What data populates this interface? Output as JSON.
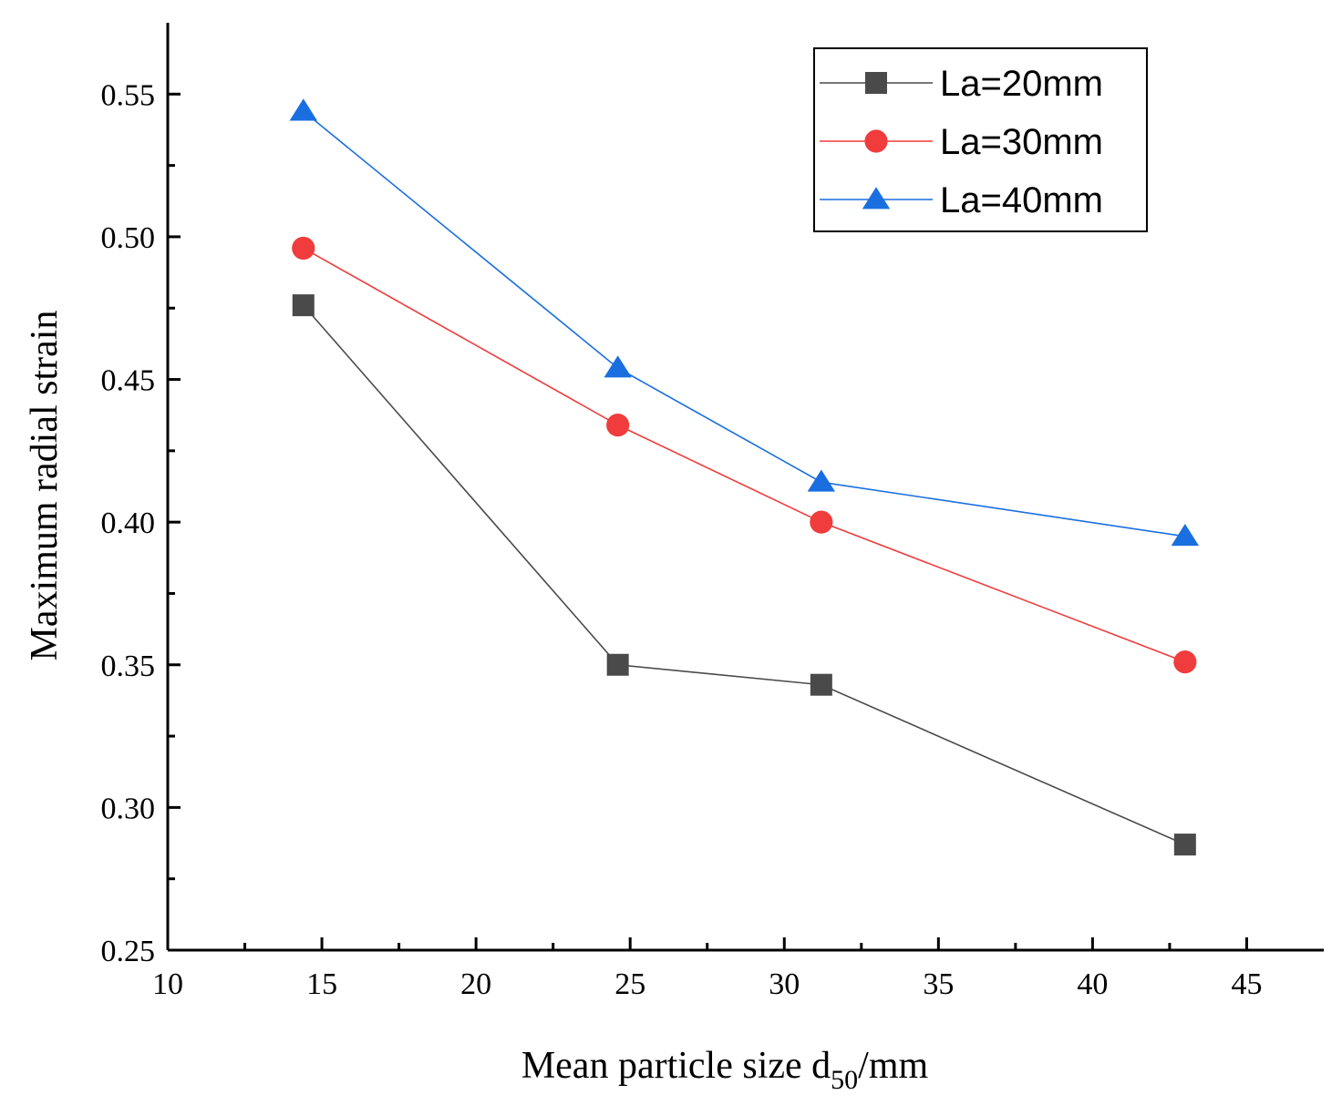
{
  "chart_data": {
    "type": "line",
    "title": "",
    "xlabel_main": "Mean particle size d",
    "xlabel_sub": "50",
    "xlabel_unit": "/mm",
    "ylabel": "Maximum radial strain",
    "xlim": [
      10,
      47.5
    ],
    "ylim": [
      0.25,
      0.575
    ],
    "xticks": [
      "10",
      "15",
      "20",
      "25",
      "30",
      "35",
      "40",
      "45"
    ],
    "yticks": [
      "0.25",
      "0.30",
      "0.35",
      "0.40",
      "0.45",
      "0.50",
      "0.55"
    ],
    "legend_position": "top-right",
    "x": [
      14.4,
      24.6,
      31.2,
      43.0
    ],
    "series": [
      {
        "name": "La=20mm",
        "color": "#4a4a4a",
        "marker": "square",
        "values": [
          0.476,
          0.35,
          0.343,
          0.287
        ]
      },
      {
        "name": "La=30mm",
        "color": "#f03c3c",
        "marker": "circle",
        "values": [
          0.496,
          0.434,
          0.4,
          0.351
        ]
      },
      {
        "name": "La=40mm",
        "color": "#1a6fe0",
        "marker": "triangle",
        "values": [
          0.544,
          0.454,
          0.414,
          0.395
        ]
      }
    ]
  }
}
